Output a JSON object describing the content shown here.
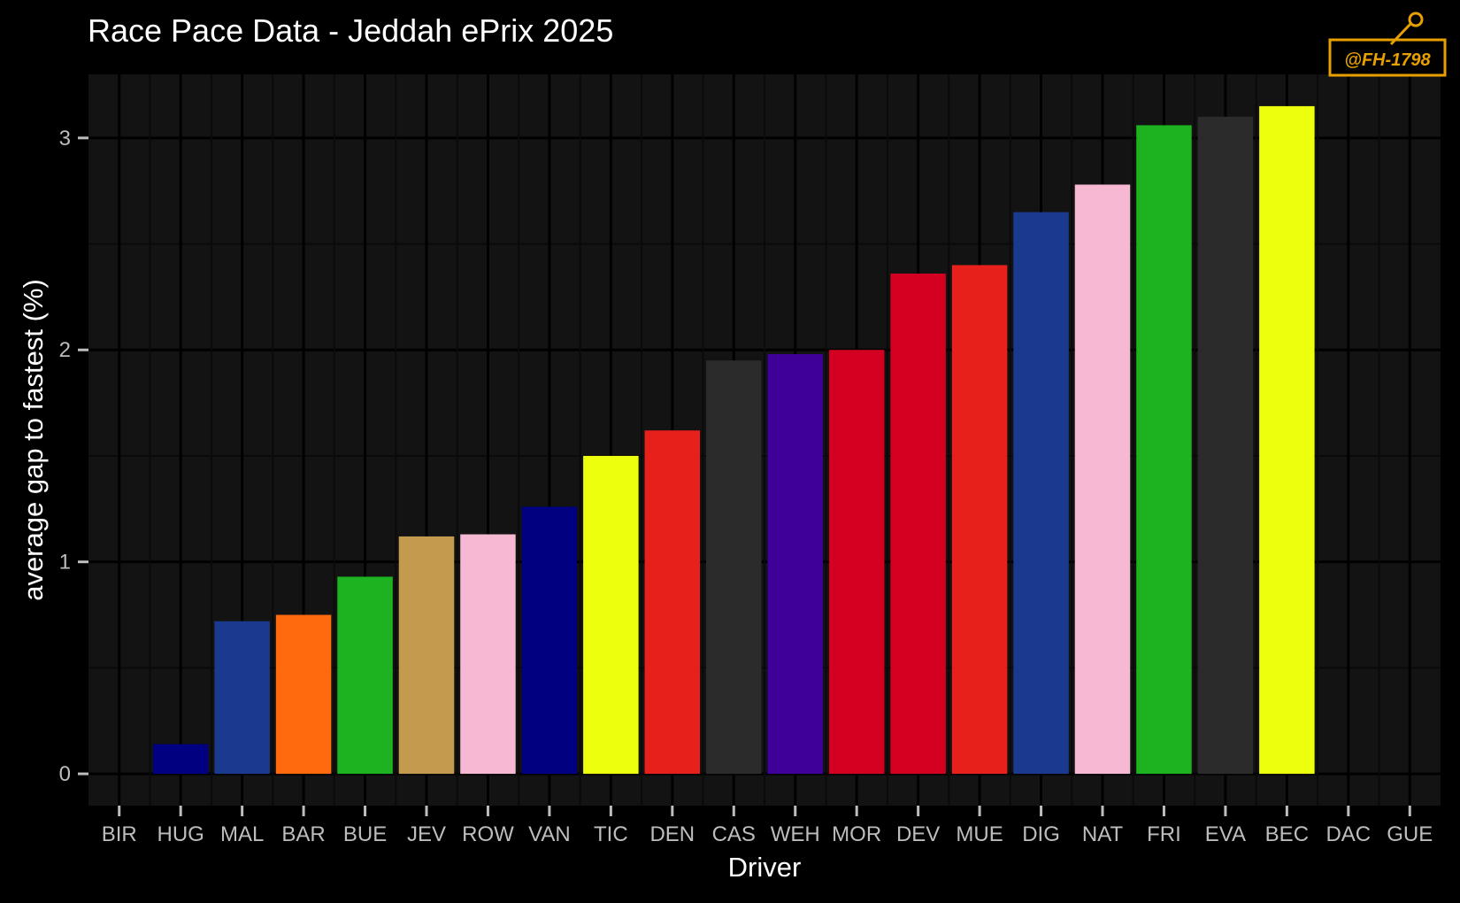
{
  "watermark": {
    "text": "@FH-1798"
  },
  "chart_data": {
    "type": "bar",
    "title": "Race Pace Data - Jeddah ePrix 2025",
    "xlabel": "Driver",
    "ylabel": "average gap to fastest (%)",
    "ylim": [
      -0.15,
      3.3
    ],
    "yticks": [
      0,
      1,
      2,
      3
    ],
    "grid": true,
    "legend": "none",
    "categories": [
      "BIR",
      "HUG",
      "MAL",
      "BAR",
      "BUE",
      "JEV",
      "ROW",
      "VAN",
      "TIC",
      "DEN",
      "CAS",
      "WEH",
      "MOR",
      "DEV",
      "MUE",
      "DIG",
      "NAT",
      "FRI",
      "EVA",
      "BEC",
      "DAC",
      "GUE"
    ],
    "values": [
      null,
      0.14,
      0.72,
      0.75,
      0.93,
      1.12,
      1.13,
      1.26,
      1.5,
      1.62,
      1.95,
      1.98,
      2.0,
      2.36,
      2.4,
      2.65,
      2.78,
      3.06,
      3.1,
      3.15,
      null,
      null
    ],
    "colors": [
      "#000000",
      "#000080",
      "#1A3A8F",
      "#FF6A0E",
      "#1DB320",
      "#C49A4E",
      "#F6B8D2",
      "#000080",
      "#EEFF0E",
      "#E8201C",
      "#2B2B2B",
      "#3E0099",
      "#D40021",
      "#D40021",
      "#E8201C",
      "#1A3A8F",
      "#F6B8D2",
      "#1DB320",
      "#2B2B2B",
      "#EEFF0E",
      "#000000",
      "#000000"
    ],
    "style": {
      "background": "#000000",
      "panel": "#131313",
      "grid_major": "#000000",
      "grid_minor": "#0a0a0a",
      "tick_label": "#bdbdbd",
      "axis_text": "#ffffff",
      "watermark": "#E8A000"
    }
  }
}
